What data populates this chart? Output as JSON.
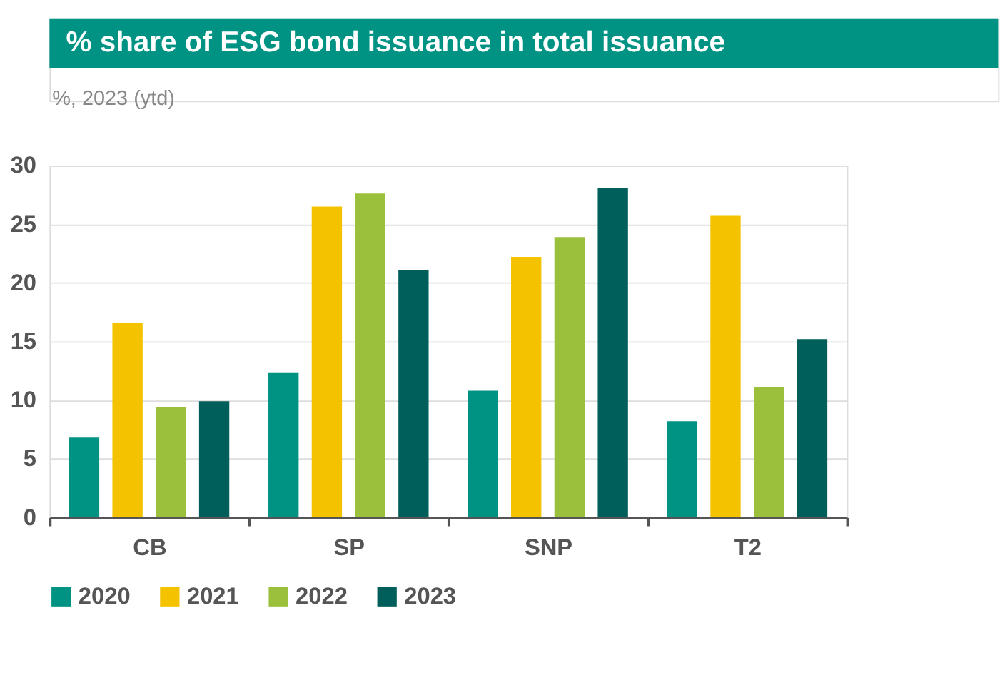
{
  "chart_data": {
    "type": "bar",
    "title": "% share of ESG bond issuance in total issuance",
    "subtitle": "%, 2023 (ytd)",
    "categories": [
      "CB",
      "SP",
      "SNP",
      "T2"
    ],
    "series": [
      {
        "name": "2020",
        "color": "#009384",
        "values": [
          6.8,
          12.3,
          10.8,
          8.2
        ]
      },
      {
        "name": "2021",
        "color": "#f5c200",
        "values": [
          16.6,
          26.5,
          22.2,
          25.7
        ]
      },
      {
        "name": "2022",
        "color": "#9bc13c",
        "values": [
          9.4,
          27.6,
          23.9,
          11.1
        ]
      },
      {
        "name": "2023",
        "color": "#005f5a",
        "values": [
          9.9,
          21.1,
          28.1,
          15.2
        ]
      }
    ],
    "ylim": [
      0,
      30
    ],
    "yticks": [
      0,
      5,
      10,
      15,
      20,
      25,
      30
    ],
    "grid": "y",
    "legend": "bottom"
  }
}
